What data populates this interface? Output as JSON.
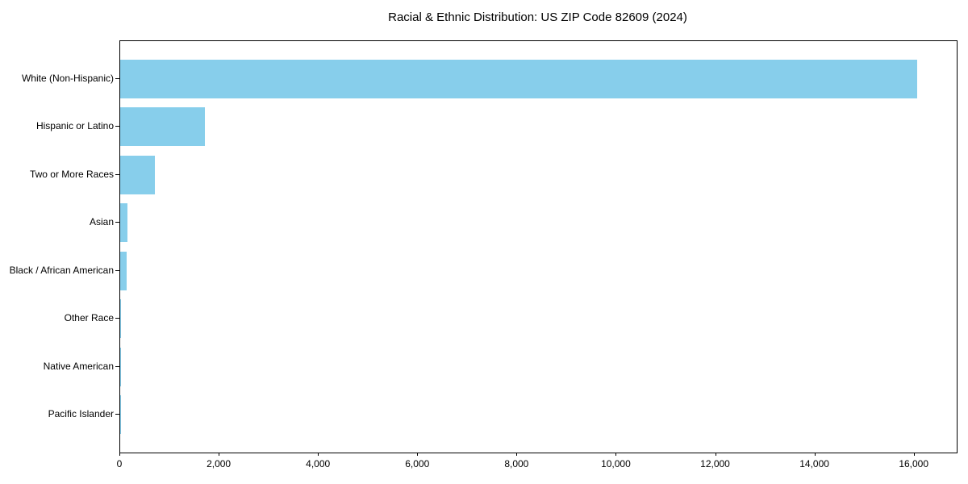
{
  "figure": {
    "background": "#ffffff"
  },
  "chart_data": {
    "type": "bar",
    "orientation": "horizontal",
    "title": "Racial & Ethnic Distribution: US ZIP Code 82609 (2024)",
    "categories": [
      "White (Non-Hispanic)",
      "Hispanic or Latino",
      "Two or More Races",
      "Asian",
      "Black / African American",
      "Other Race",
      "Native American",
      "Pacific Islander"
    ],
    "values": [
      16050,
      1710,
      700,
      150,
      130,
      20,
      15,
      5
    ],
    "bar_color": "#87CEEB",
    "xlabel": "",
    "ylabel": "",
    "xlim": [
      0,
      16850
    ],
    "x_ticks": [
      0,
      2000,
      4000,
      6000,
      8000,
      10000,
      12000,
      14000,
      16000
    ],
    "x_tick_labels": [
      "0",
      "2,000",
      "4,000",
      "6,000",
      "8,000",
      "10,000",
      "12,000",
      "14,000",
      "16,000"
    ],
    "grid": false,
    "legend_position": "none"
  }
}
